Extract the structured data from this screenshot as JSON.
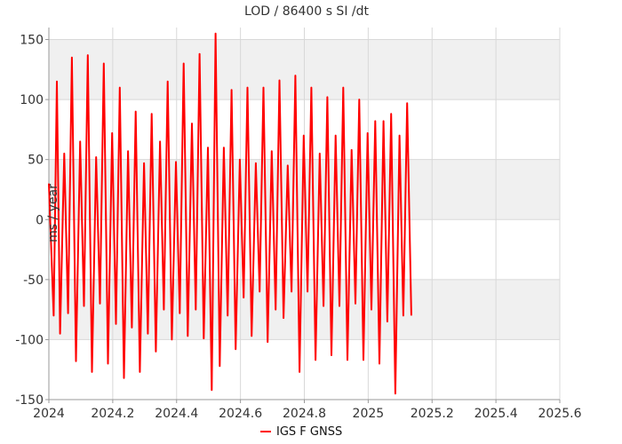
{
  "chart_data": {
    "type": "line",
    "title": "LOD / 86400 s SI /dt",
    "xlabel": "",
    "ylabel": "ms / year",
    "xlim": [
      2024.0,
      2025.6
    ],
    "ylim": [
      -150,
      160
    ],
    "x_ticks": [
      2024,
      2024.2,
      2024.4,
      2024.6,
      2024.8,
      2025,
      2025.2,
      2025.4,
      2025.6
    ],
    "x_tick_labels": [
      "2024",
      "2024.2",
      "2024.4",
      "2024.6",
      "2024.8",
      "2025",
      "2025.2",
      "2025.4",
      "2025.6"
    ],
    "y_ticks": [
      -150,
      -100,
      -50,
      0,
      50,
      100,
      150
    ],
    "y_tick_labels": [
      "-150",
      "-100",
      "-50",
      "0",
      "50",
      "100",
      "150"
    ],
    "grid": true,
    "alternating_bands": true,
    "legend_position": "bottom-center",
    "series": [
      {
        "name": "IGS F GNSS",
        "color": "#ff0000",
        "points": [
          [
            2024.0,
            30
          ],
          [
            2024.015,
            -80
          ],
          [
            2024.025,
            115
          ],
          [
            2024.035,
            -95
          ],
          [
            2024.048,
            55
          ],
          [
            2024.06,
            -78
          ],
          [
            2024.072,
            135
          ],
          [
            2024.085,
            -118
          ],
          [
            2024.098,
            65
          ],
          [
            2024.11,
            -72
          ],
          [
            2024.122,
            137
          ],
          [
            2024.135,
            -127
          ],
          [
            2024.148,
            52
          ],
          [
            2024.16,
            -70
          ],
          [
            2024.172,
            130
          ],
          [
            2024.185,
            -120
          ],
          [
            2024.198,
            72
          ],
          [
            2024.21,
            -87
          ],
          [
            2024.222,
            110
          ],
          [
            2024.235,
            -132
          ],
          [
            2024.248,
            57
          ],
          [
            2024.26,
            -90
          ],
          [
            2024.272,
            90
          ],
          [
            2024.285,
            -127
          ],
          [
            2024.298,
            47
          ],
          [
            2024.31,
            -95
          ],
          [
            2024.322,
            88
          ],
          [
            2024.335,
            -110
          ],
          [
            2024.348,
            65
          ],
          [
            2024.36,
            -75
          ],
          [
            2024.372,
            115
          ],
          [
            2024.385,
            -100
          ],
          [
            2024.398,
            48
          ],
          [
            2024.41,
            -78
          ],
          [
            2024.422,
            130
          ],
          [
            2024.435,
            -97
          ],
          [
            2024.448,
            80
          ],
          [
            2024.46,
            -75
          ],
          [
            2024.472,
            138
          ],
          [
            2024.485,
            -99
          ],
          [
            2024.498,
            60
          ],
          [
            2024.51,
            -142
          ],
          [
            2024.522,
            155
          ],
          [
            2024.535,
            -122
          ],
          [
            2024.548,
            60
          ],
          [
            2024.56,
            -80
          ],
          [
            2024.572,
            108
          ],
          [
            2024.585,
            -108
          ],
          [
            2024.598,
            50
          ],
          [
            2024.61,
            -65
          ],
          [
            2024.622,
            110
          ],
          [
            2024.635,
            -97
          ],
          [
            2024.648,
            47
          ],
          [
            2024.66,
            -60
          ],
          [
            2024.672,
            110
          ],
          [
            2024.685,
            -102
          ],
          [
            2024.698,
            57
          ],
          [
            2024.71,
            -75
          ],
          [
            2024.722,
            116
          ],
          [
            2024.735,
            -82
          ],
          [
            2024.748,
            45
          ],
          [
            2024.76,
            -60
          ],
          [
            2024.772,
            120
          ],
          [
            2024.785,
            -127
          ],
          [
            2024.798,
            70
          ],
          [
            2024.81,
            -60
          ],
          [
            2024.822,
            110
          ],
          [
            2024.835,
            -117
          ],
          [
            2024.848,
            55
          ],
          [
            2024.86,
            -72
          ],
          [
            2024.872,
            102
          ],
          [
            2024.885,
            -113
          ],
          [
            2024.898,
            70
          ],
          [
            2024.91,
            -72
          ],
          [
            2024.922,
            110
          ],
          [
            2024.935,
            -117
          ],
          [
            2024.948,
            58
          ],
          [
            2024.96,
            -70
          ],
          [
            2024.972,
            100
          ],
          [
            2024.985,
            -117
          ],
          [
            2024.998,
            72
          ],
          [
            2025.01,
            -75
          ],
          [
            2025.022,
            82
          ],
          [
            2025.035,
            -120
          ],
          [
            2025.048,
            82
          ],
          [
            2025.06,
            -85
          ],
          [
            2025.072,
            88
          ],
          [
            2025.085,
            -145
          ],
          [
            2025.098,
            70
          ],
          [
            2025.11,
            -80
          ],
          [
            2025.122,
            97
          ],
          [
            2025.135,
            -80
          ]
        ]
      }
    ]
  }
}
